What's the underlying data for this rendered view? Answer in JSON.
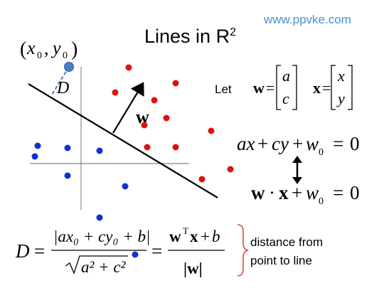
{
  "watermark": "www.ppvke.com",
  "title": {
    "text": "Lines in R",
    "sup": "2"
  },
  "point_label": {
    "x": "x",
    "xs": "0",
    "y": "y",
    "ys": "0"
  },
  "distance_label": "D",
  "normal_label": "w",
  "let_label": "Let",
  "w_def": {
    "lhs": "w",
    "top": "a",
    "bot": "c"
  },
  "x_def": {
    "lhs": "x",
    "top": "x",
    "bot": "y"
  },
  "eq1": {
    "a": "ax",
    "c": "cy",
    "w": "w",
    "ws": "0",
    "rhs": "0"
  },
  "eq2": {
    "w": "w",
    "x": "x",
    "w0": "w",
    "ws": "0",
    "rhs": "0"
  },
  "formula": {
    "D": "D",
    "num1": "|ax₀ + cy₀ + b|",
    "den1": "a² + c²",
    "num2_w": "w",
    "num2_T": "T",
    "num2_x": "x",
    "num2_b": "b",
    "den2": "|w|"
  },
  "note": {
    "line1": "distance from",
    "line2": "point to line"
  },
  "colors": {
    "red": "#e01010",
    "blue": "#1030d8",
    "point": "#4a7ec6",
    "dash": "#4a7ec6",
    "bracket": "#d04040"
  },
  "points_red_count": 14,
  "points_blue_count": 9
}
